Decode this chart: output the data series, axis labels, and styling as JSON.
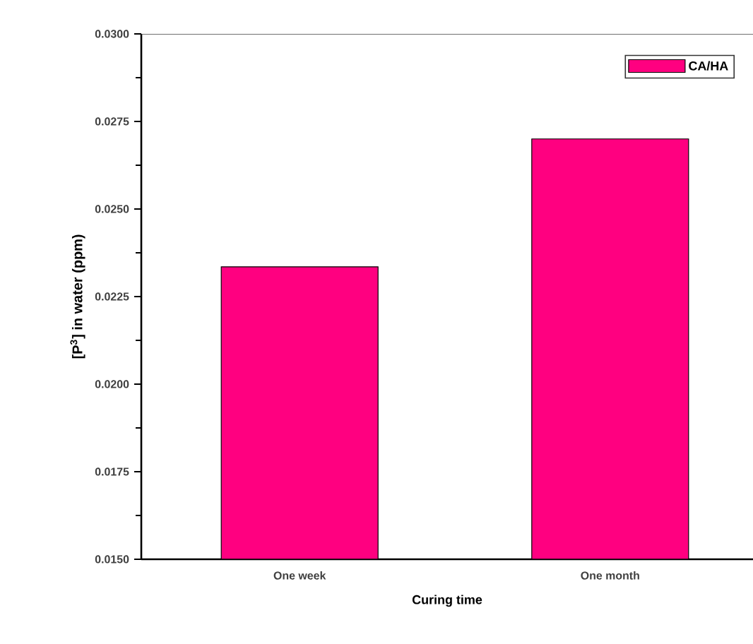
{
  "chart_data": {
    "type": "bar",
    "xlabel": "Curing time",
    "ylabel": "[P$^{3}$] in water (ppm)",
    "categories": [
      "One week",
      "One month"
    ],
    "series": [
      {
        "name": "CA/HA",
        "color": "#ff0080",
        "values": [
          0.02335,
          0.027
        ]
      }
    ],
    "ylim": [
      0.015,
      0.03
    ],
    "yticks": [
      {
        "value": 0.015,
        "label": "0.0150"
      },
      {
        "value": 0.0175,
        "label": "0.0175"
      },
      {
        "value": 0.02,
        "label": "0.0200"
      },
      {
        "value": 0.0225,
        "label": "0.0225"
      },
      {
        "value": 0.025,
        "label": "0.0250"
      },
      {
        "value": 0.0275,
        "label": "0.0275"
      },
      {
        "value": 0.03,
        "label": "0.0300"
      }
    ],
    "legend": "top right",
    "grid": false
  }
}
